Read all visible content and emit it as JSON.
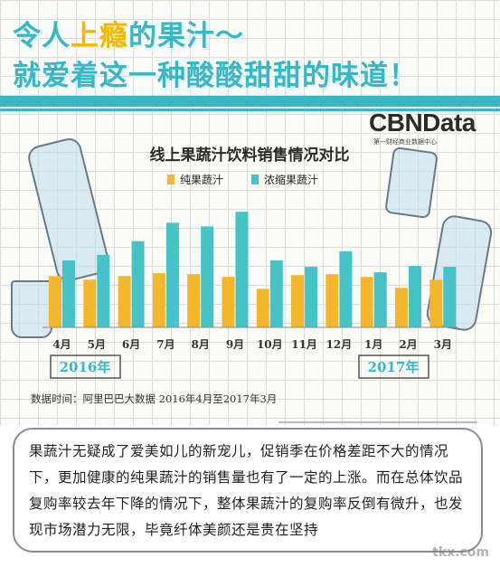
{
  "headline": {
    "line1_pre": "令人",
    "line1_hl1": "上",
    "line1_hl2": "瘾",
    "line1_post": "的果汁～",
    "line2": "就爱着这一种酸酸甜甜的味道！"
  },
  "brand": {
    "name": "CBNData",
    "tagline": "第一财经商业数据中心"
  },
  "colors": {
    "teal": "#3ab7c4",
    "yellow": "#f5b800",
    "pure_juice": "#f4b62a",
    "concentrate": "#46c3c6"
  },
  "chart_data": {
    "type": "bar",
    "title": "线上果蔬汁饮料销售情况对比",
    "categories": [
      "4月",
      "5月",
      "6月",
      "7月",
      "8月",
      "9月",
      "10月",
      "11月",
      "12月",
      "1月",
      "2月",
      "3月"
    ],
    "series": [
      {
        "name": "纯果蔬汁",
        "values": [
          56,
          52,
          56,
          59,
          58,
          55,
          42,
          57,
          58,
          55,
          43,
          52
        ]
      },
      {
        "name": "浓缩果蔬汁",
        "values": [
          73,
          79,
          94,
          114,
          110,
          126,
          73,
          66,
          83,
          60,
          67,
          66
        ]
      }
    ],
    "year_labels": [
      "2016年",
      "2017年"
    ],
    "source": "数据时间：阿里巴巴大数据  2016年4月至2017年3月",
    "ylim": [
      0,
      140
    ],
    "grid": true,
    "legend": "top"
  },
  "description": {
    "text": "果蔬汁无疑成了爱美如儿的新宠儿，促销季在价格差距不大的情况下，更加健康的纯果蔬汁的销售量也有了一定的上涨。而在总体饮品复购率较去年下降的情况下，整体果蔬汁的复购率反倒有微升，也发现市场潜力无限，毕竟纤体美颜还是贵在坚持"
  },
  "watermark": "tkx.com"
}
